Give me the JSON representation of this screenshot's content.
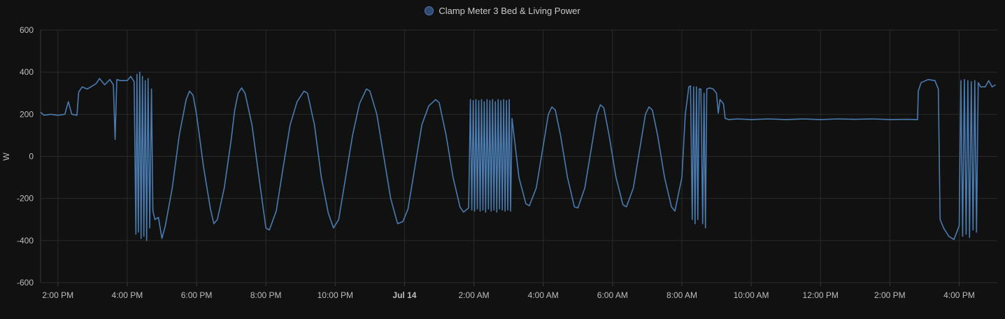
{
  "legend": {
    "series_name": "Clamp Meter 3 Bed & Living Power"
  },
  "colors": {
    "background": "#111111",
    "grid": "#2a2a2a",
    "series": "#4a7bb0",
    "text": "#bdbdbd"
  },
  "chart_data": {
    "type": "line",
    "ylabel": "W",
    "ylim": [
      -600,
      600
    ],
    "yticks": [
      600,
      400,
      200,
      0,
      -200,
      -400,
      -600
    ],
    "xlim": [
      13.5,
      41.1
    ],
    "xticks": [
      {
        "x": 14,
        "label": "2:00 PM",
        "bold": false
      },
      {
        "x": 16,
        "label": "4:00 PM",
        "bold": false
      },
      {
        "x": 18,
        "label": "6:00 PM",
        "bold": false
      },
      {
        "x": 20,
        "label": "8:00 PM",
        "bold": false
      },
      {
        "x": 22,
        "label": "10:00 PM",
        "bold": false
      },
      {
        "x": 24,
        "label": "Jul 14",
        "bold": true
      },
      {
        "x": 26,
        "label": "2:00 AM",
        "bold": false
      },
      {
        "x": 28,
        "label": "4:00 AM",
        "bold": false
      },
      {
        "x": 30,
        "label": "6:00 AM",
        "bold": false
      },
      {
        "x": 32,
        "label": "8:00 AM",
        "bold": false
      },
      {
        "x": 34,
        "label": "10:00 AM",
        "bold": false
      },
      {
        "x": 36,
        "label": "12:00 PM",
        "bold": false
      },
      {
        "x": 38,
        "label": "2:00 PM",
        "bold": false
      },
      {
        "x": 40,
        "label": "4:00 PM",
        "bold": false
      }
    ],
    "grid": true,
    "legend_position": "top-center",
    "series": [
      {
        "name": "Clamp Meter 3 Bed & Living Power",
        "x_unit": "hours since Jul 13 00:00",
        "points": [
          [
            13.5,
            210
          ],
          [
            13.6,
            195
          ],
          [
            13.8,
            200
          ],
          [
            14.0,
            195
          ],
          [
            14.2,
            200
          ],
          [
            14.3,
            260
          ],
          [
            14.4,
            200
          ],
          [
            14.55,
            195
          ],
          [
            14.6,
            305
          ],
          [
            14.7,
            330
          ],
          [
            14.85,
            320
          ],
          [
            15.0,
            335
          ],
          [
            15.1,
            345
          ],
          [
            15.2,
            370
          ],
          [
            15.35,
            340
          ],
          [
            15.5,
            365
          ],
          [
            15.6,
            340
          ],
          [
            15.65,
            80
          ],
          [
            15.7,
            365
          ],
          [
            15.8,
            360
          ],
          [
            16.0,
            360
          ],
          [
            16.1,
            380
          ],
          [
            16.2,
            355
          ],
          [
            16.25,
            -370
          ],
          [
            16.28,
            390
          ],
          [
            16.32,
            -360
          ],
          [
            16.36,
            400
          ],
          [
            16.4,
            -390
          ],
          [
            16.44,
            380
          ],
          [
            16.48,
            -380
          ],
          [
            16.52,
            360
          ],
          [
            16.56,
            -400
          ],
          [
            16.6,
            370
          ],
          [
            16.65,
            -340
          ],
          [
            16.7,
            320
          ],
          [
            16.74,
            -260
          ],
          [
            16.8,
            -300
          ],
          [
            16.9,
            -290
          ],
          [
            17.0,
            -390
          ],
          [
            17.1,
            -330
          ],
          [
            17.3,
            -150
          ],
          [
            17.5,
            100
          ],
          [
            17.7,
            270
          ],
          [
            17.8,
            310
          ],
          [
            17.9,
            290
          ],
          [
            18.0,
            200
          ],
          [
            18.2,
            -50
          ],
          [
            18.4,
            -250
          ],
          [
            18.5,
            -320
          ],
          [
            18.6,
            -300
          ],
          [
            18.8,
            -150
          ],
          [
            19.0,
            80
          ],
          [
            19.1,
            220
          ],
          [
            19.2,
            300
          ],
          [
            19.3,
            325
          ],
          [
            19.4,
            300
          ],
          [
            19.6,
            150
          ],
          [
            19.8,
            -100
          ],
          [
            20.0,
            -340
          ],
          [
            20.1,
            -350
          ],
          [
            20.3,
            -260
          ],
          [
            20.5,
            -50
          ],
          [
            20.7,
            150
          ],
          [
            20.9,
            260
          ],
          [
            21.1,
            310
          ],
          [
            21.2,
            300
          ],
          [
            21.4,
            150
          ],
          [
            21.6,
            -100
          ],
          [
            21.8,
            -270
          ],
          [
            21.95,
            -340
          ],
          [
            22.1,
            -300
          ],
          [
            22.3,
            -100
          ],
          [
            22.5,
            100
          ],
          [
            22.7,
            250
          ],
          [
            22.9,
            320
          ],
          [
            23.0,
            310
          ],
          [
            23.2,
            200
          ],
          [
            23.4,
            0
          ],
          [
            23.6,
            -200
          ],
          [
            23.8,
            -320
          ],
          [
            23.95,
            -310
          ],
          [
            24.1,
            -250
          ],
          [
            24.3,
            -50
          ],
          [
            24.5,
            150
          ],
          [
            24.7,
            240
          ],
          [
            24.9,
            270
          ],
          [
            25.0,
            255
          ],
          [
            25.2,
            100
          ],
          [
            25.4,
            -100
          ],
          [
            25.6,
            -240
          ],
          [
            25.7,
            -265
          ],
          [
            25.85,
            -245
          ],
          [
            25.9,
            270
          ],
          [
            25.94,
            -255
          ],
          [
            25.98,
            265
          ],
          [
            26.02,
            -260
          ],
          [
            26.06,
            270
          ],
          [
            26.1,
            -250
          ],
          [
            26.14,
            265
          ],
          [
            26.18,
            -260
          ],
          [
            26.22,
            270
          ],
          [
            26.26,
            -255
          ],
          [
            26.3,
            260
          ],
          [
            26.34,
            -265
          ],
          [
            26.38,
            270
          ],
          [
            26.42,
            -250
          ],
          [
            26.46,
            265
          ],
          [
            26.5,
            -260
          ],
          [
            26.54,
            270
          ],
          [
            26.58,
            -255
          ],
          [
            26.62,
            260
          ],
          [
            26.66,
            -265
          ],
          [
            26.7,
            270
          ],
          [
            26.74,
            -250
          ],
          [
            26.78,
            265
          ],
          [
            26.82,
            -255
          ],
          [
            26.86,
            270
          ],
          [
            26.9,
            -260
          ],
          [
            26.94,
            265
          ],
          [
            26.98,
            -255
          ],
          [
            27.02,
            270
          ],
          [
            27.06,
            -260
          ],
          [
            27.1,
            180
          ],
          [
            27.3,
            -100
          ],
          [
            27.5,
            -225
          ],
          [
            27.6,
            -235
          ],
          [
            27.8,
            -150
          ],
          [
            28.0,
            50
          ],
          [
            28.15,
            200
          ],
          [
            28.25,
            235
          ],
          [
            28.35,
            220
          ],
          [
            28.5,
            100
          ],
          [
            28.7,
            -100
          ],
          [
            28.9,
            -240
          ],
          [
            29.0,
            -245
          ],
          [
            29.2,
            -150
          ],
          [
            29.4,
            50
          ],
          [
            29.55,
            200
          ],
          [
            29.65,
            245
          ],
          [
            29.75,
            230
          ],
          [
            29.9,
            100
          ],
          [
            30.1,
            -100
          ],
          [
            30.3,
            -230
          ],
          [
            30.4,
            -240
          ],
          [
            30.6,
            -150
          ],
          [
            30.8,
            50
          ],
          [
            30.95,
            200
          ],
          [
            31.05,
            235
          ],
          [
            31.15,
            220
          ],
          [
            31.3,
            100
          ],
          [
            31.5,
            -100
          ],
          [
            31.7,
            -240
          ],
          [
            31.8,
            -260
          ],
          [
            32.0,
            -100
          ],
          [
            32.1,
            200
          ],
          [
            32.2,
            330
          ],
          [
            32.25,
            335
          ],
          [
            32.3,
            -300
          ],
          [
            32.34,
            330
          ],
          [
            32.38,
            -320
          ],
          [
            32.42,
            330
          ],
          [
            32.46,
            -300
          ],
          [
            32.5,
            320
          ],
          [
            32.55,
            320
          ],
          [
            32.6,
            -320
          ],
          [
            32.64,
            300
          ],
          [
            32.68,
            -340
          ],
          [
            32.72,
            320
          ],
          [
            32.8,
            325
          ],
          [
            32.9,
            320
          ],
          [
            33.0,
            300
          ],
          [
            33.05,
            205
          ],
          [
            33.1,
            270
          ],
          [
            33.2,
            250
          ],
          [
            33.25,
            180
          ],
          [
            33.35,
            175
          ],
          [
            33.6,
            178
          ],
          [
            34.0,
            175
          ],
          [
            34.5,
            178
          ],
          [
            35.0,
            175
          ],
          [
            35.5,
            178
          ],
          [
            36.0,
            175
          ],
          [
            36.5,
            178
          ],
          [
            37.0,
            176
          ],
          [
            37.5,
            178
          ],
          [
            38.0,
            175
          ],
          [
            38.5,
            176
          ],
          [
            38.8,
            175
          ],
          [
            38.82,
            310
          ],
          [
            38.9,
            350
          ],
          [
            39.1,
            365
          ],
          [
            39.3,
            360
          ],
          [
            39.4,
            320
          ],
          [
            39.45,
            -300
          ],
          [
            39.55,
            -340
          ],
          [
            39.7,
            -380
          ],
          [
            39.85,
            -395
          ],
          [
            40.0,
            -330
          ],
          [
            40.05,
            360
          ],
          [
            40.1,
            -380
          ],
          [
            40.15,
            365
          ],
          [
            40.2,
            -370
          ],
          [
            40.25,
            360
          ],
          [
            40.3,
            -385
          ],
          [
            40.35,
            355
          ],
          [
            40.4,
            -350
          ],
          [
            40.45,
            360
          ],
          [
            40.5,
            -360
          ],
          [
            40.55,
            350
          ],
          [
            40.62,
            330
          ],
          [
            40.75,
            330
          ],
          [
            40.85,
            360
          ],
          [
            40.95,
            330
          ],
          [
            41.05,
            340
          ]
        ]
      }
    ]
  }
}
